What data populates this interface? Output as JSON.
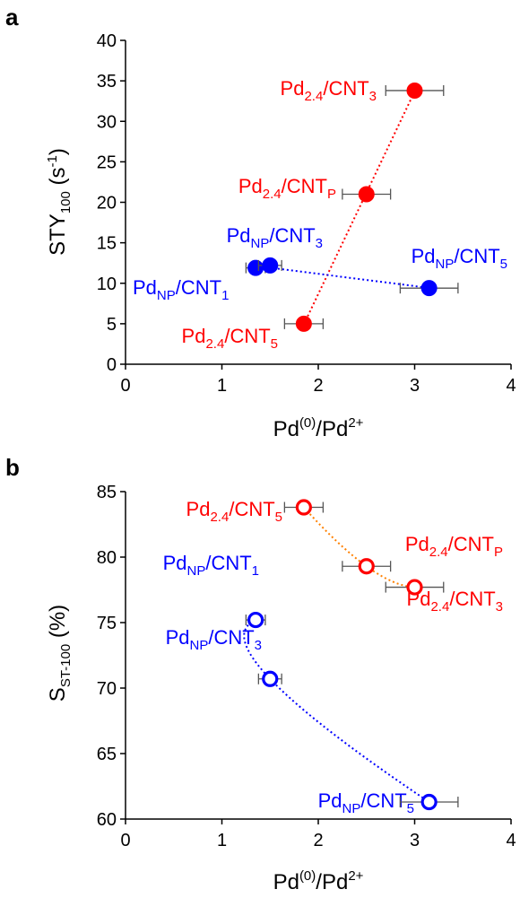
{
  "chart_data": [
    {
      "panel": "a",
      "type": "scatter",
      "xlabel": "Pd(0)/Pd2+",
      "ylabel": "STY100 (s-1)",
      "xlim": [
        0,
        4
      ],
      "ylim": [
        0,
        40
      ],
      "x_ticks": [
        0,
        1,
        2,
        3,
        4
      ],
      "y_ticks": [
        0,
        5,
        10,
        15,
        20,
        25,
        30,
        35,
        40
      ],
      "marker": "filled-circle",
      "series": [
        {
          "color": "#ff0000",
          "trendline": "linear-dotted",
          "points": [
            {
              "label": "Pd2.4/CNT5",
              "x": 1.85,
              "y": 5.0,
              "xerr": 0.2
            },
            {
              "label": "Pd2.4/CNTP",
              "x": 2.5,
              "y": 21.0,
              "xerr": 0.25
            },
            {
              "label": "Pd2.4/CNT3",
              "x": 3.0,
              "y": 33.8,
              "xerr": 0.3
            }
          ]
        },
        {
          "color": "#0000ff",
          "trendline": "linear-dotted",
          "points": [
            {
              "label": "PdNP/CNT1",
              "x": 1.35,
              "y": 11.9,
              "xerr": 0.1
            },
            {
              "label": "PdNP/CNT3",
              "x": 1.5,
              "y": 12.2,
              "xerr": 0.12
            },
            {
              "label": "PdNP/CNT5",
              "x": 3.15,
              "y": 9.4,
              "xerr": 0.3
            }
          ]
        }
      ]
    },
    {
      "panel": "b",
      "type": "scatter",
      "xlabel": "Pd(0)/Pd2+",
      "ylabel": "SST-100 (%)",
      "xlim": [
        0,
        4
      ],
      "ylim": [
        60,
        85
      ],
      "x_ticks": [
        0,
        1,
        2,
        3,
        4
      ],
      "y_ticks": [
        60,
        65,
        70,
        75,
        80,
        85
      ],
      "marker": "open-circle",
      "series": [
        {
          "color": "#ff0000",
          "trendline": "curve-dotted",
          "trendline_color": "#ff8000",
          "points": [
            {
              "label": "Pd2.4/CNT5",
              "x": 1.85,
              "y": 83.8,
              "xerr": 0.2
            },
            {
              "label": "Pd2.4/CNTP",
              "x": 2.5,
              "y": 79.3,
              "xerr": 0.25
            },
            {
              "label": "Pd2.4/CNT3",
              "x": 3.0,
              "y": 77.7,
              "xerr": 0.3
            }
          ]
        },
        {
          "color": "#0000ff",
          "trendline": "curve-dotted",
          "points": [
            {
              "label": "PdNP/CNT1",
              "x": 1.35,
              "y": 75.2,
              "xerr": 0.1
            },
            {
              "label": "PdNP/CNT3",
              "x": 1.5,
              "y": 70.7,
              "xerr": 0.12
            },
            {
              "label": "PdNP/CNT5",
              "x": 3.15,
              "y": 61.3,
              "xerr": 0.3
            }
          ]
        }
      ]
    }
  ],
  "labels": {
    "a": {
      "panel": "a",
      "x_title": {
        "base": "Pd",
        "sup1": "(0)",
        "mid": "/Pd",
        "sup2": "2+"
      },
      "y_title": {
        "base": "STY",
        "sub": "100",
        "mid": " (s",
        "sup": "-1",
        "end": ")"
      },
      "points": [
        {
          "base": "Pd",
          "sub1": "2.4",
          "mid": "/CNT",
          "sub2": "3",
          "color": "#ff0000"
        },
        {
          "base": "Pd",
          "sub1": "2.4",
          "mid": "/CNT",
          "sub2": "P",
          "color": "#ff0000"
        },
        {
          "base": "Pd",
          "sub1": "NP",
          "mid": "/CNT",
          "sub2": "3",
          "color": "#0000ff"
        },
        {
          "base": "Pd",
          "sub1": "NP",
          "mid": "/CNT",
          "sub2": "5",
          "color": "#0000ff"
        },
        {
          "base": "Pd",
          "sub1": "NP",
          "mid": "/CNT",
          "sub2": "1",
          "color": "#0000ff"
        },
        {
          "base": "Pd",
          "sub1": "2.4",
          "mid": "/CNT",
          "sub2": "5",
          "color": "#ff0000"
        }
      ]
    },
    "b": {
      "panel": "b",
      "x_title": {
        "base": "Pd",
        "sup1": "(0)",
        "mid": "/Pd",
        "sup2": "2+"
      },
      "y_title": {
        "base": "S",
        "sub": "ST-100",
        "end": " (%)"
      },
      "points": [
        {
          "base": "Pd",
          "sub1": "2.4",
          "mid": "/CNT",
          "sub2": "5",
          "color": "#ff0000"
        },
        {
          "base": "Pd",
          "sub1": "2.4",
          "mid": "/CNT",
          "sub2": "P",
          "color": "#ff0000"
        },
        {
          "base": "Pd",
          "sub1": "2.4",
          "mid": "/CNT",
          "sub2": "3",
          "color": "#ff0000"
        },
        {
          "base": "Pd",
          "sub1": "NP",
          "mid": "/CNT",
          "sub2": "1",
          "color": "#0000ff"
        },
        {
          "base": "Pd",
          "sub1": "NP",
          "mid": "/CNT",
          "sub2": "3",
          "color": "#0000ff"
        },
        {
          "base": "Pd",
          "sub1": "NP",
          "mid": "/CNT",
          "sub2": "5",
          "color": "#0000ff"
        }
      ]
    }
  }
}
